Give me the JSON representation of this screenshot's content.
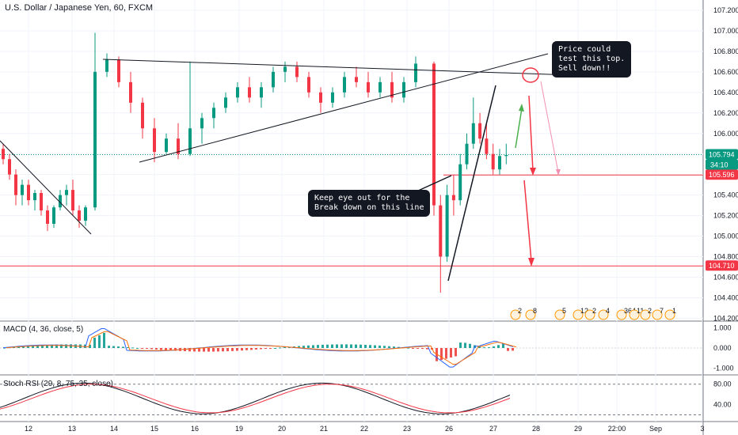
{
  "title": "U.S. Dollar / Japanese Yen, 60, FXCM",
  "chart_data": {
    "type": "candlestick",
    "title": "U.S. Dollar / Japanese Yen, 60, FXCM",
    "price_axis": {
      "ticks": [
        "107.200",
        "107.000",
        "106.800",
        "106.600",
        "106.400",
        "106.200",
        "106.000",
        "105.800",
        "105.600",
        "105.400",
        "105.200",
        "105.000",
        "104.800",
        "104.600",
        "104.400",
        "104.200"
      ],
      "range": [
        104.18,
        107.3
      ]
    },
    "time_axis": {
      "ticks": [
        "12",
        "13",
        "14",
        "15",
        "16",
        "19",
        "20",
        "21",
        "22",
        "23",
        "26",
        "27",
        "28",
        "29",
        "22:00",
        "Sep",
        "3"
      ]
    },
    "candles_ohlc": [
      [
        105.85,
        105.9,
        105.7,
        105.75
      ],
      [
        105.75,
        105.8,
        105.55,
        105.6
      ],
      [
        105.6,
        105.65,
        105.3,
        105.4
      ],
      [
        105.4,
        105.55,
        105.3,
        105.5
      ],
      [
        105.5,
        105.55,
        105.3,
        105.35
      ],
      [
        105.35,
        105.45,
        105.25,
        105.42
      ],
      [
        105.42,
        105.45,
        105.2,
        105.25
      ],
      [
        105.25,
        105.3,
        105.05,
        105.12
      ],
      [
        105.12,
        105.3,
        105.08,
        105.28
      ],
      [
        105.28,
        105.45,
        105.25,
        105.4
      ],
      [
        105.4,
        105.5,
        105.3,
        105.45
      ],
      [
        105.45,
        105.55,
        105.2,
        105.25
      ],
      [
        105.25,
        105.3,
        105.08,
        105.15
      ],
      [
        105.15,
        105.3,
        105.1,
        105.28
      ],
      [
        105.28,
        106.98,
        105.25,
        106.6
      ],
      [
        106.6,
        106.78,
        106.55,
        106.72
      ],
      [
        106.72,
        106.75,
        106.45,
        106.5
      ],
      [
        106.5,
        106.6,
        106.2,
        106.3
      ],
      [
        106.3,
        106.35,
        105.95,
        106.05
      ],
      [
        106.05,
        106.15,
        105.72,
        105.82
      ],
      [
        105.82,
        106.0,
        105.8,
        105.95
      ],
      [
        105.95,
        106.1,
        105.75,
        105.8
      ],
      [
        105.8,
        106.7,
        105.78,
        106.05
      ],
      [
        106.05,
        106.2,
        105.9,
        106.15
      ],
      [
        106.15,
        106.3,
        106.05,
        106.25
      ],
      [
        106.25,
        106.4,
        106.2,
        106.35
      ],
      [
        106.35,
        106.5,
        106.3,
        106.45
      ],
      [
        106.45,
        106.55,
        106.3,
        106.35
      ],
      [
        106.35,
        106.5,
        106.25,
        106.45
      ],
      [
        106.45,
        106.65,
        106.4,
        106.6
      ],
      [
        106.6,
        106.7,
        106.5,
        106.65
      ],
      [
        106.65,
        106.7,
        106.5,
        106.55
      ],
      [
        106.55,
        106.6,
        106.35,
        106.4
      ],
      [
        106.4,
        106.45,
        106.2,
        106.3
      ],
      [
        106.3,
        106.45,
        106.25,
        106.4
      ],
      [
        106.4,
        106.6,
        106.35,
        106.55
      ],
      [
        106.55,
        106.65,
        106.45,
        106.5
      ],
      [
        106.5,
        106.6,
        106.35,
        106.4
      ],
      [
        106.4,
        106.55,
        106.35,
        106.5
      ],
      [
        106.5,
        106.6,
        106.3,
        106.35
      ],
      [
        106.35,
        106.55,
        106.3,
        106.5
      ],
      [
        106.5,
        106.75,
        106.45,
        106.68
      ],
      [
        106.68,
        106.7,
        105.2,
        105.3
      ],
      [
        105.3,
        105.4,
        104.45,
        104.8
      ],
      [
        104.8,
        105.5,
        104.75,
        105.4
      ],
      [
        105.4,
        105.6,
        105.2,
        105.35
      ],
      [
        105.35,
        105.8,
        105.3,
        105.7
      ],
      [
        105.7,
        106.0,
        105.65,
        105.9
      ],
      [
        105.9,
        106.35,
        105.85,
        106.1
      ],
      [
        106.1,
        106.2,
        105.9,
        105.95
      ],
      [
        105.95,
        106.1,
        105.75,
        105.8
      ],
      [
        105.8,
        105.9,
        105.6,
        105.65
      ],
      [
        105.65,
        105.85,
        105.6,
        105.78
      ],
      [
        105.78,
        105.9,
        105.7,
        105.79
      ]
    ],
    "horizontal_levels": [
      {
        "price": 105.596,
        "label": "105.596",
        "color": "#f23645"
      },
      {
        "price": 104.71,
        "label": "104.710",
        "color": "#f23645"
      },
      {
        "price": 105.794,
        "label": "105.794",
        "color": "#089981"
      }
    ],
    "countdown": "34:10",
    "annotations": [
      {
        "text": "Price could\ntest this top.\nSell down!!"
      },
      {
        "text": "Keep eye out for the\nBreak down on this line"
      }
    ],
    "macd": {
      "label": "MACD (4, 36, close, 5)",
      "ticks": [
        "1.000",
        "0.000",
        "-1.000"
      ],
      "range": [
        -1.25,
        1.25
      ]
    },
    "stoch_rsi": {
      "label": "Stoch RSI (29, 8, 75, 35, close)",
      "ticks": [
        "80.00",
        "40.00"
      ],
      "range": [
        10,
        95
      ],
      "upper_band": 80,
      "lower_band": 20
    },
    "event_badges": [
      "2",
      "8",
      "5",
      "12",
      "2",
      "4",
      "364",
      "11",
      "2",
      "7",
      "1",
      "2"
    ]
  },
  "colors": {
    "up": "#089981",
    "down": "#f23645",
    "trendline": "#131722",
    "macd_line": "#2962ff",
    "signal_line": "#ff6d00",
    "stoch_k": "#131722",
    "stoch_d": "#f23645",
    "grid": "#f0f3fa",
    "current_price": "#089981"
  }
}
